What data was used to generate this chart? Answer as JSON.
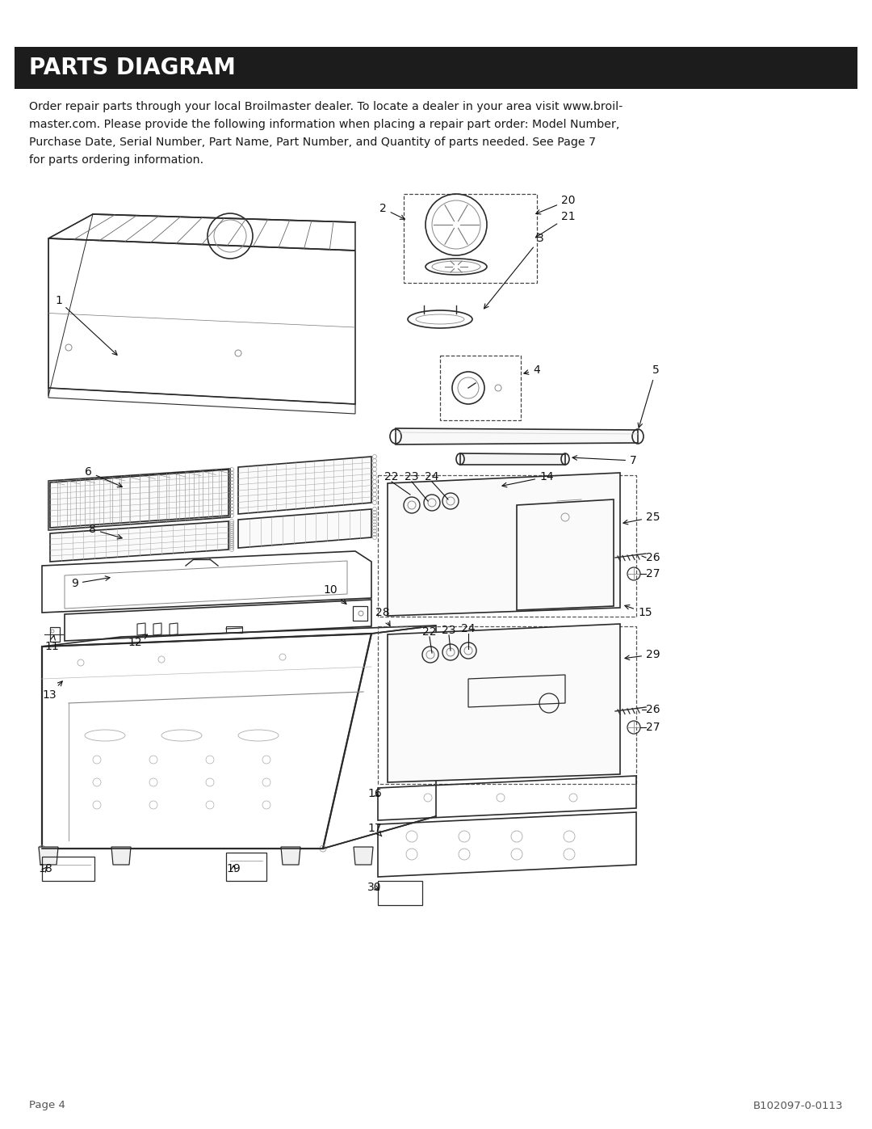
{
  "title": "PARTS DIAGRAM",
  "title_bg": "#1c1c1c",
  "title_color": "#ffffff",
  "footer_left": "Page 4",
  "footer_right": "B102097-0-0113",
  "bg_color": "#ffffff",
  "text_color": "#1a1a1a",
  "figsize": [
    10.8,
    13.97
  ],
  "dpi": 100,
  "body_lines": [
    "Order repair parts through your local Broilmaster dealer. To locate a dealer in your area visit www.broil-",
    "master.com. Please provide the following information when placing a repair part order: Model Number,",
    "Purchase Date, Serial Number, Part Name, Part Number, and Quantity of parts needed. See Page 7",
    "for parts ordering information."
  ]
}
